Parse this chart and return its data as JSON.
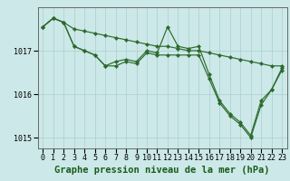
{
  "title": "Graphe pression niveau de la mer (hPa)",
  "xlabel_labels": [
    "0",
    "1",
    "2",
    "3",
    "4",
    "5",
    "6",
    "7",
    "8",
    "9",
    "10",
    "11",
    "12",
    "13",
    "14",
    "15",
    "16",
    "17",
    "18",
    "19",
    "20",
    "21",
    "22",
    "23"
  ],
  "x": [
    0,
    1,
    2,
    3,
    4,
    5,
    6,
    7,
    8,
    9,
    10,
    11,
    12,
    13,
    14,
    15,
    16,
    17,
    18,
    19,
    20,
    21,
    22,
    23
  ],
  "series": [
    [
      1017.55,
      1017.75,
      1017.65,
      1017.5,
      1017.45,
      1017.4,
      1017.35,
      1017.3,
      1017.25,
      1017.2,
      1017.15,
      1017.1,
      1017.1,
      1017.05,
      1017.0,
      1017.0,
      1016.95,
      1016.9,
      1016.85,
      1016.8,
      1016.75,
      1016.7,
      1016.65,
      1016.65
    ],
    [
      1017.55,
      1017.75,
      1017.65,
      1017.1,
      1017.0,
      1016.9,
      1016.65,
      1016.75,
      1016.8,
      1016.75,
      1017.0,
      1016.95,
      1017.55,
      1017.1,
      1017.05,
      1017.1,
      1016.45,
      1015.85,
      1015.55,
      1015.35,
      1015.05,
      1015.85,
      1016.1,
      1016.6
    ],
    [
      1017.55,
      1017.75,
      1017.65,
      1017.1,
      1017.0,
      1016.9,
      1016.65,
      1016.65,
      1016.75,
      1016.7,
      1016.95,
      1016.9,
      1016.9,
      1016.9,
      1016.9,
      1016.9,
      1016.35,
      1015.8,
      1015.5,
      1015.3,
      1015.0,
      1015.75,
      1016.1,
      1016.55
    ]
  ],
  "line_color": "#2d6a2d",
  "bg_color": "#cce8e8",
  "grid_color": "#aacfcf",
  "ylim": [
    1014.75,
    1018.0
  ],
  "yticks": [
    1015,
    1016,
    1017
  ],
  "title_color": "#1a5c1a",
  "title_fontsize": 7.5,
  "tick_fontsize": 6.0,
  "marker": "D",
  "marker_size": 2.2,
  "linewidth": 0.85
}
